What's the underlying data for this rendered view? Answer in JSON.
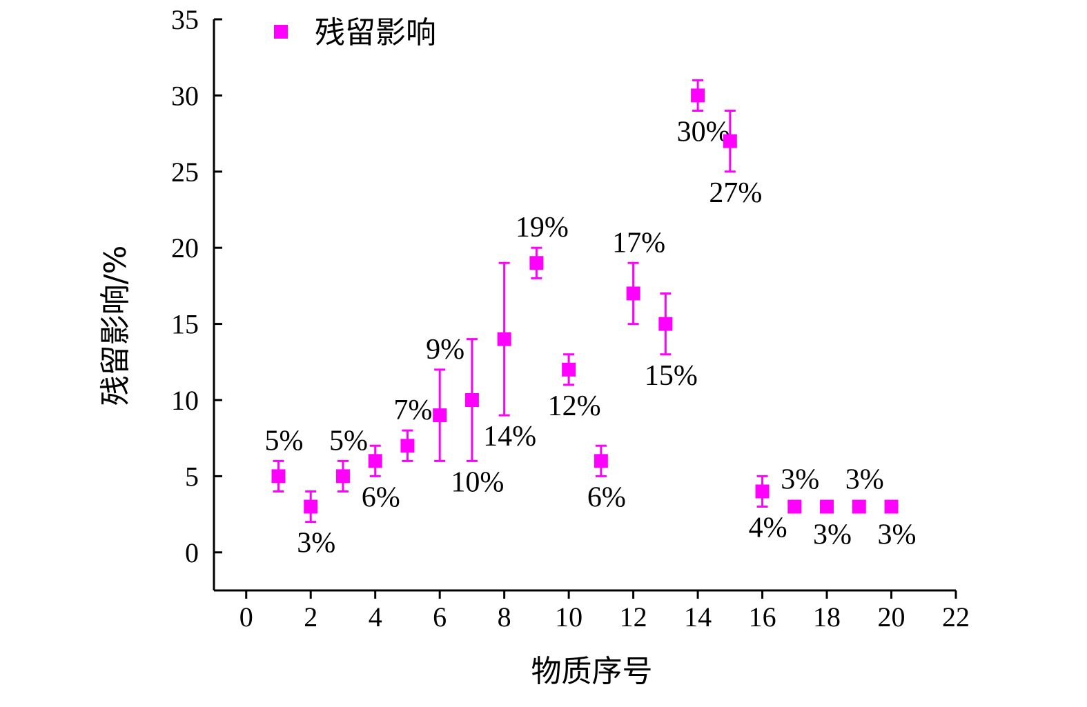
{
  "chart_data": {
    "type": "scatter",
    "title": "",
    "xlabel": "物质序号",
    "ylabel": "残留影响/%",
    "xlim": [
      -1,
      22
    ],
    "ylim": [
      -2.5,
      35
    ],
    "xticks": [
      0,
      2,
      4,
      6,
      8,
      10,
      12,
      14,
      16,
      18,
      20,
      22
    ],
    "yticks": [
      0,
      5,
      10,
      15,
      20,
      25,
      30,
      35
    ],
    "grid": false,
    "legend": {
      "position": "top-left"
    },
    "series": [
      {
        "name": "残留影响",
        "color": "#ff00ff",
        "marker": "square",
        "points": [
          {
            "x": 1,
            "y": 5,
            "err_low": 4,
            "err_high": 6,
            "label": "5%",
            "label_pos": "above"
          },
          {
            "x": 2,
            "y": 3,
            "err_low": 2,
            "err_high": 4,
            "label": "3%",
            "label_pos": "below"
          },
          {
            "x": 3,
            "y": 5,
            "err_low": 4,
            "err_high": 6,
            "label": "5%",
            "label_pos": "above"
          },
          {
            "x": 4,
            "y": 6,
            "err_low": 5,
            "err_high": 7,
            "label": "6%",
            "label_pos": "below"
          },
          {
            "x": 5,
            "y": 7,
            "err_low": 6,
            "err_high": 8,
            "label": "7%",
            "label_pos": "above"
          },
          {
            "x": 6,
            "y": 9,
            "err_low": 6,
            "err_high": 12,
            "label": "9%",
            "label_pos": "above"
          },
          {
            "x": 7,
            "y": 10,
            "err_low": 6,
            "err_high": 14,
            "label": "10%",
            "label_pos": "below"
          },
          {
            "x": 8,
            "y": 14,
            "err_low": 9,
            "err_high": 19,
            "label": "14%",
            "label_pos": "below"
          },
          {
            "x": 9,
            "y": 19,
            "err_low": 18,
            "err_high": 20,
            "label": "19%",
            "label_pos": "above"
          },
          {
            "x": 10,
            "y": 12,
            "err_low": 11,
            "err_high": 13,
            "label": "12%",
            "label_pos": "below"
          },
          {
            "x": 11,
            "y": 6,
            "err_low": 5,
            "err_high": 7,
            "label": "6%",
            "label_pos": "below"
          },
          {
            "x": 12,
            "y": 17,
            "err_low": 15,
            "err_high": 19,
            "label": "17%",
            "label_pos": "above"
          },
          {
            "x": 13,
            "y": 15,
            "err_low": 13,
            "err_high": 17,
            "label": "15%",
            "label_pos": "below"
          },
          {
            "x": 14,
            "y": 30,
            "err_low": 29,
            "err_high": 31,
            "label": "30%",
            "label_pos": "below"
          },
          {
            "x": 15,
            "y": 27,
            "err_low": 25,
            "err_high": 29,
            "label": "27%",
            "label_pos": "below"
          },
          {
            "x": 16,
            "y": 4,
            "err_low": 3,
            "err_high": 5,
            "label": "4%",
            "label_pos": "below"
          },
          {
            "x": 17,
            "y": 3,
            "label": "3%",
            "label_pos": "above"
          },
          {
            "x": 18,
            "y": 3,
            "label": "3%",
            "label_pos": "below"
          },
          {
            "x": 19,
            "y": 3,
            "label": "3%",
            "label_pos": "above"
          },
          {
            "x": 20,
            "y": 3,
            "label": "3%",
            "label_pos": "below"
          }
        ]
      }
    ]
  }
}
